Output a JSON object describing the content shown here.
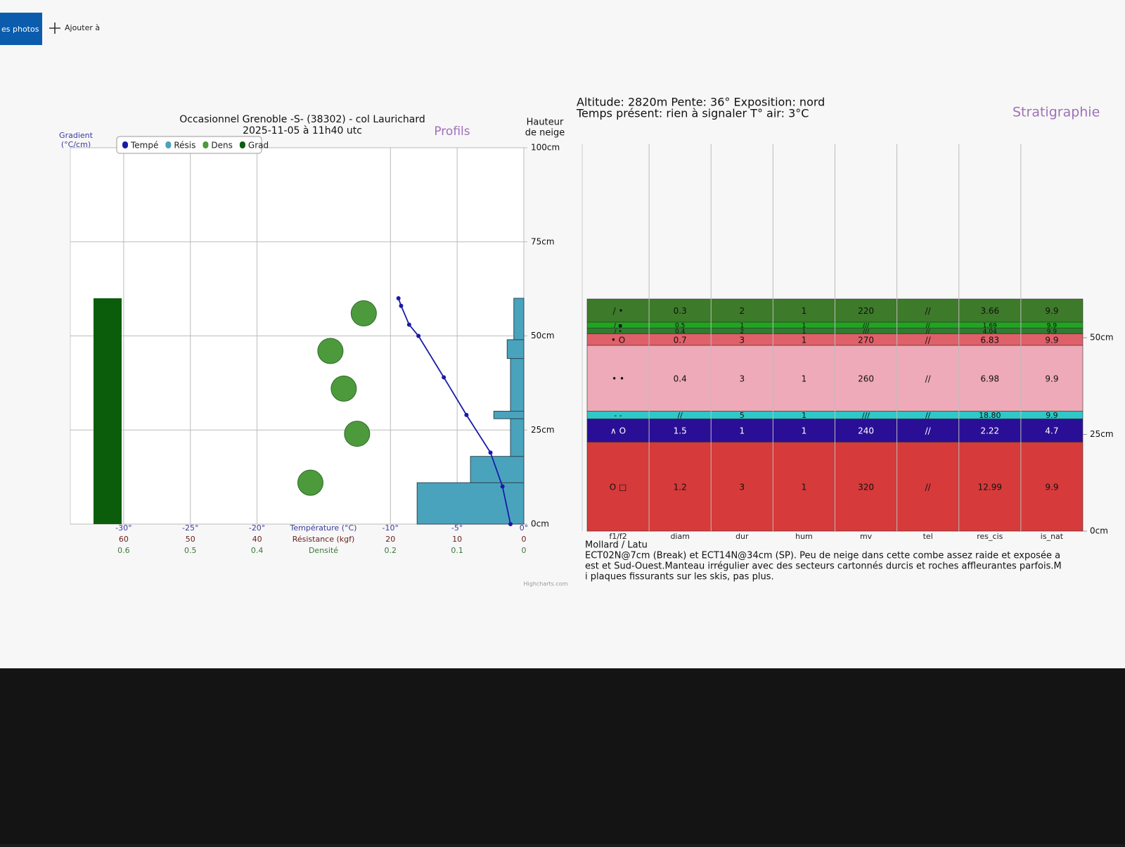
{
  "toolbar": {
    "tab": "es photos",
    "add": "Ajouter à"
  },
  "chart_data": {
    "type": "profile",
    "title": "Occasionnel Grenoble -S- (38302) - col Laurichard",
    "subtitle": "2025-11-05 à 11h40 utc",
    "panel_label": "Profils",
    "y_title": [
      "Hauteur",
      "de neige"
    ],
    "gradient_title": [
      "Gradient",
      "(°C/cm)"
    ],
    "credit": "Highcharts.com",
    "ylim": [
      0,
      100
    ],
    "yticks": [
      {
        "value": 0,
        "label": "0cm"
      },
      {
        "value": 25,
        "label": "25cm"
      },
      {
        "value": 50,
        "label": "50cm"
      },
      {
        "value": 75,
        "label": "75cm"
      },
      {
        "value": 100,
        "label": "100cm"
      }
    ],
    "grid": true,
    "x_axes": [
      {
        "title": "Température (°C)",
        "xlim": [
          -34,
          0
        ],
        "xticks": [
          {
            "value": -30,
            "label": "-30°"
          },
          {
            "value": -25,
            "label": "-25°"
          },
          {
            "value": -20,
            "label": "-20°"
          },
          {
            "value": -10,
            "label": "-10°"
          },
          {
            "value": -5,
            "label": "-5°"
          },
          {
            "value": 0,
            "label": "0°"
          }
        ]
      },
      {
        "title": "Résistance (kgf)",
        "xlim": [
          68,
          0
        ],
        "xticks": [
          60,
          50,
          40,
          20,
          10,
          0
        ]
      },
      {
        "title": "Densité",
        "xlim": [
          0.68,
          0
        ],
        "xticks": [
          0.6,
          0.5,
          0.4,
          0.2,
          0.1,
          0
        ]
      }
    ],
    "series": [
      {
        "name": "Tempé",
        "color": "#1a1aa8",
        "x": [
          -9.4,
          -9.2,
          -8.6,
          -7.9,
          -6,
          -4.3,
          -2.5,
          -1.6,
          -1
        ],
        "y": [
          60,
          58,
          53,
          50,
          39,
          29,
          19,
          10,
          0
        ]
      },
      {
        "name": "Résis",
        "color": "#4aa3bd",
        "values": [
          16,
          8,
          2,
          4.5,
          2,
          2.5,
          1.5
        ],
        "bounds": [
          0,
          11,
          18,
          28,
          30,
          44,
          49,
          60
        ]
      },
      {
        "name": "Dens",
        "color": "#4c9a3c",
        "x": [
          0.24,
          0.29,
          0.27,
          0.25,
          0.32
        ],
        "y": [
          56,
          46,
          36,
          24,
          11
        ]
      },
      {
        "name": "Grad",
        "color": "#0b5d0b",
        "bounds": [
          0,
          60
        ]
      }
    ]
  },
  "info": [
    "Altitude: 2820m Pente: 36° Exposition: nord",
    "Temps présent: rien à signaler T° air: 3°C"
  ],
  "stratigraphy": {
    "title": "Stratigraphie",
    "columns": [
      "f1/f2",
      "diam",
      "dur",
      "hum",
      "mv",
      "tel",
      "res_cis",
      "is_nat"
    ],
    "ylim": [
      0,
      100
    ],
    "yticks": [
      {
        "value": 0,
        "label": "0cm"
      },
      {
        "value": 25,
        "label": "25cm"
      },
      {
        "value": 50,
        "label": "50cm"
      }
    ],
    "layers": [
      {
        "top": 60,
        "bottom": 54,
        "color": "#3d7a2a",
        "cells": [
          "/ •",
          "0.3",
          "2",
          "1",
          "220",
          "//",
          "3.66",
          "9.9"
        ]
      },
      {
        "top": 54,
        "bottom": 52.5,
        "color": "#1fa51f",
        "cells": [
          "/ ▪",
          "0.5",
          "1",
          "1",
          "///",
          "//",
          "1.69",
          "9.9"
        ]
      },
      {
        "top": 52.5,
        "bottom": 51,
        "color": "#2e7d2e",
        "cells": [
          "/ •",
          "0.4",
          "2",
          "1",
          "///",
          "//",
          "4.04",
          "9.9"
        ]
      },
      {
        "top": 51,
        "bottom": 48,
        "color": "#e0606a",
        "cells": [
          "• O",
          "0.7",
          "3",
          "1",
          "270",
          "//",
          "6.83",
          "9.9"
        ]
      },
      {
        "top": 48,
        "bottom": 31,
        "color": "#eeaab8",
        "cells": [
          "• •",
          "0.4",
          "3",
          "1",
          "260",
          "//",
          "6.98",
          "9.9"
        ]
      },
      {
        "top": 31,
        "bottom": 29,
        "color": "#2fc7c7",
        "cells": [
          "- -",
          "//",
          "5",
          "1",
          "///",
          "//",
          "18.80",
          "9.9"
        ]
      },
      {
        "top": 29,
        "bottom": 23,
        "color": "#2a0f96",
        "cells": [
          "∧ O",
          "1.5",
          "1",
          "1",
          "240",
          "//",
          "2.22",
          "4.7"
        ]
      },
      {
        "top": 23,
        "bottom": 0,
        "color": "#d63a3a",
        "cells": [
          "O □",
          "1.2",
          "3",
          "1",
          "320",
          "//",
          "12.99",
          "9.9"
        ]
      }
    ]
  },
  "observer": "Mollard / Latu",
  "comment": [
    "ECT02N@7cm (Break) et ECT14N@34cm (SP). Peu de neige dans cette combe assez raide et exposée a",
    "est et Sud-Ouest.Manteau irrégulier avec des secteurs cartonnés durcis et roches affleurantes parfois.M",
    "i plaques fissurants sur les skis, pas plus."
  ]
}
